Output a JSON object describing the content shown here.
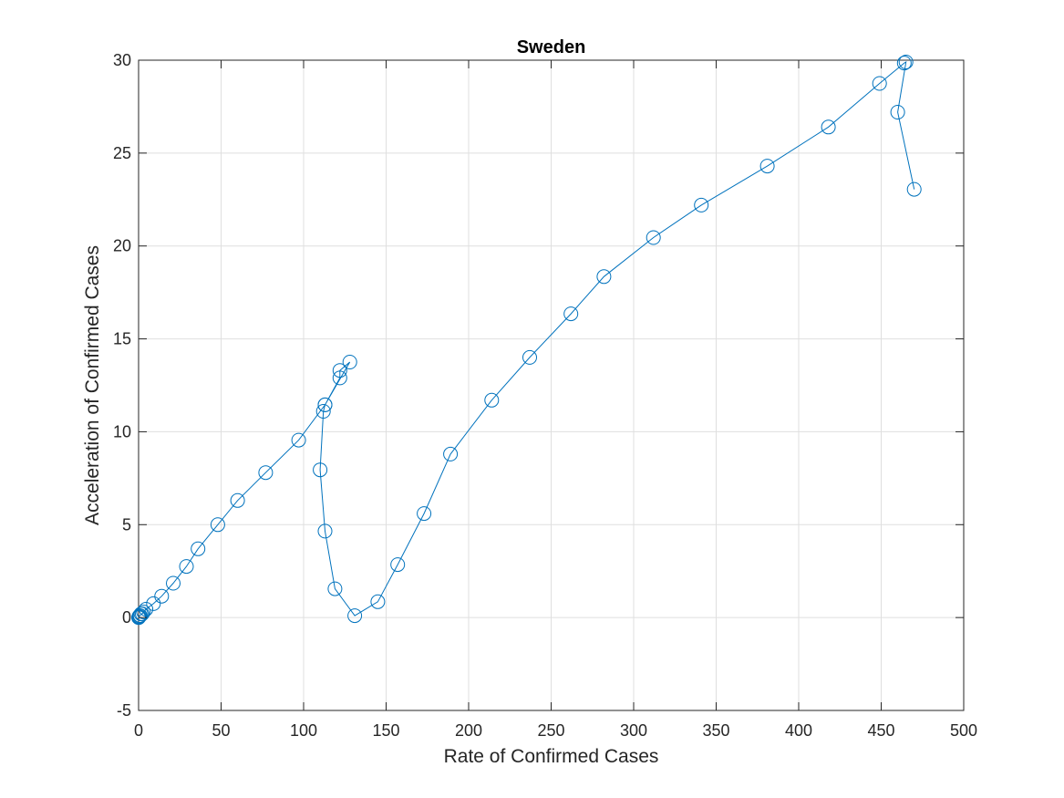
{
  "chart_data": {
    "type": "line",
    "title": "Sweden",
    "xlabel": "Rate of Confirmed Cases",
    "ylabel": "Acceleration of Confirmed Cases",
    "xlim": [
      0,
      500
    ],
    "ylim": [
      -5,
      30
    ],
    "xticks": [
      "0",
      "50",
      "100",
      "150",
      "200",
      "250",
      "300",
      "350",
      "400",
      "450",
      "500"
    ],
    "yticks": [
      "-5",
      "0",
      "5",
      "10",
      "15",
      "20",
      "25",
      "30"
    ],
    "grid": true,
    "marker": "circle",
    "line_color": "#0072bd",
    "series": [
      {
        "x": [
          0.0,
          0.1,
          0.2,
          0.3,
          0.6,
          1.0,
          1.5,
          2.2,
          3.0,
          4.5,
          9,
          14,
          21,
          29,
          36,
          48,
          60,
          77,
          97,
          113,
          128,
          122,
          122,
          113,
          112,
          110,
          113,
          119,
          131,
          145,
          157,
          173,
          189,
          214,
          237,
          262,
          282,
          312,
          341,
          381,
          418,
          449,
          464,
          465,
          460,
          470
        ],
        "y": [
          0.0,
          0.0,
          0.05,
          0.05,
          0.1,
          0.1,
          0.2,
          0.2,
          0.3,
          0.45,
          0.75,
          1.15,
          1.85,
          2.75,
          3.7,
          5.0,
          6.3,
          7.8,
          9.55,
          11.45,
          13.75,
          13.3,
          12.9,
          11.45,
          11.1,
          7.95,
          4.65,
          1.55,
          0.1,
          0.85,
          2.85,
          5.6,
          8.8,
          11.7,
          14.0,
          16.35,
          18.35,
          20.45,
          22.2,
          24.3,
          26.4,
          28.75,
          29.85,
          29.9,
          27.2,
          23.05
        ]
      }
    ]
  }
}
